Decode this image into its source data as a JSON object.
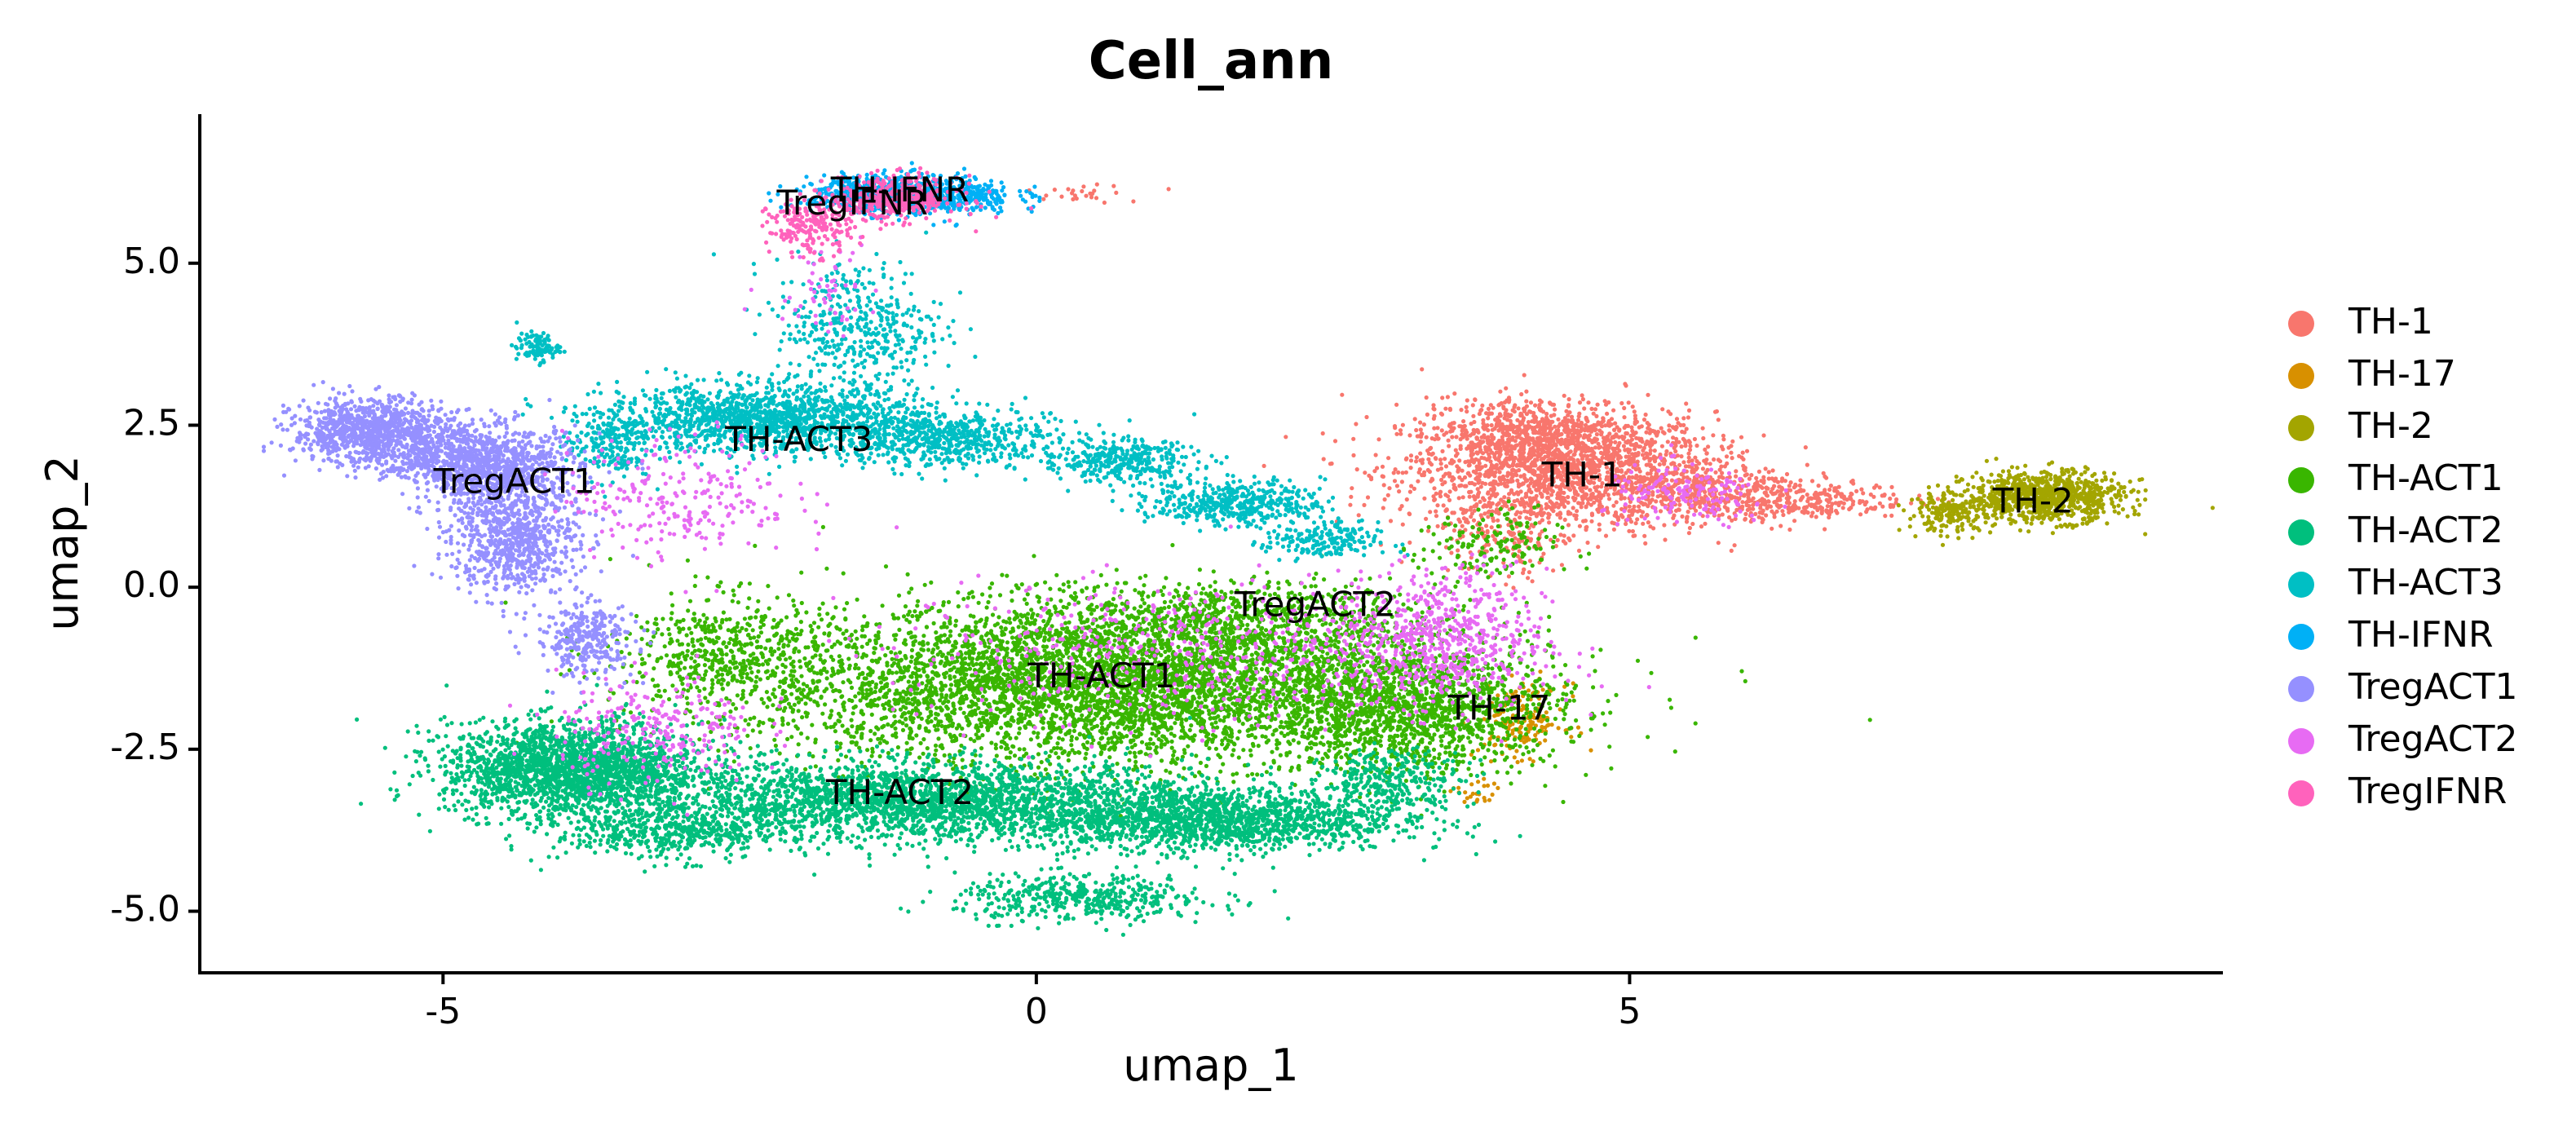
{
  "chart_data": {
    "type": "scatter",
    "title": "Cell_ann",
    "xlabel": "umap_1",
    "ylabel": "umap_2",
    "xlim": [
      -7.05,
      10.0
    ],
    "ylim": [
      -5.95,
      7.3
    ],
    "xticks": [
      -5,
      0,
      5
    ],
    "xtick_labels": [
      "-5",
      "0",
      "5"
    ],
    "yticks": [
      -5.0,
      -2.5,
      0.0,
      2.5,
      5.0
    ],
    "ytick_labels": [
      "-5.0",
      "-2.5",
      "0.0",
      "2.5",
      "5.0"
    ],
    "grid": false,
    "legend_position": "right",
    "series": [
      {
        "name": "TH-1",
        "color": "#F8766D",
        "label_pos": [
          4.6,
          1.7
        ],
        "blobs": [
          [
            4.4,
            1.8,
            1.1,
            0.75,
            1700
          ],
          [
            4.2,
            2.4,
            0.8,
            0.45,
            500
          ],
          [
            6.3,
            1.35,
            0.9,
            0.25,
            350
          ],
          [
            5.6,
            1.5,
            0.7,
            0.5,
            300
          ],
          [
            3.9,
            0.8,
            0.5,
            0.6,
            150
          ],
          [
            0.4,
            6.1,
            0.4,
            0.12,
            25
          ]
        ]
      },
      {
        "name": "TH-17",
        "color": "#D89000",
        "label_pos": [
          3.9,
          -1.9
        ],
        "blobs": [
          [
            4.1,
            -2.05,
            0.3,
            0.45,
            170
          ],
          [
            3.7,
            -3.2,
            0.15,
            0.2,
            25
          ]
        ]
      },
      {
        "name": "TH-2",
        "color": "#A3A500",
        "label_pos": [
          8.4,
          1.3
        ],
        "blobs": [
          [
            8.5,
            1.4,
            0.55,
            0.32,
            900
          ],
          [
            7.7,
            1.15,
            0.3,
            0.25,
            200
          ]
        ]
      },
      {
        "name": "TH-ACT1",
        "color": "#39B600",
        "label_pos": [
          0.55,
          -1.4
        ],
        "blobs": [
          [
            0.6,
            -1.5,
            2.5,
            1.0,
            5200
          ],
          [
            3.2,
            -1.9,
            1.0,
            0.8,
            1200
          ],
          [
            -2.6,
            -1.0,
            0.7,
            0.75,
            450
          ],
          [
            1.6,
            -0.5,
            1.5,
            0.5,
            700
          ],
          [
            3.8,
            0.6,
            0.5,
            0.5,
            150
          ]
        ]
      },
      {
        "name": "TH-ACT2",
        "color": "#00BF7D",
        "label_pos": [
          -1.15,
          -3.2
        ],
        "blobs": [
          [
            -3.9,
            -2.8,
            0.9,
            0.6,
            2200
          ],
          [
            -1.0,
            -3.3,
            2.0,
            0.5,
            2600
          ],
          [
            1.5,
            -3.6,
            1.3,
            0.4,
            1500
          ],
          [
            0.4,
            -4.8,
            0.9,
            0.3,
            450
          ],
          [
            -3.1,
            -3.8,
            0.8,
            0.35,
            450
          ],
          [
            3.0,
            -3.0,
            0.5,
            0.4,
            300
          ]
        ]
      },
      {
        "name": "TH-ACT3",
        "color": "#00BFC4",
        "label_pos": [
          -2.0,
          2.25
        ],
        "blobs": [
          [
            -2.3,
            2.6,
            1.1,
            0.42,
            1400
          ],
          [
            -0.8,
            2.3,
            0.8,
            0.38,
            600
          ],
          [
            0.7,
            1.95,
            0.55,
            0.28,
            350
          ],
          [
            1.7,
            1.3,
            0.6,
            0.28,
            450
          ],
          [
            2.4,
            0.7,
            0.4,
            0.25,
            200
          ],
          [
            -1.5,
            4.0,
            0.6,
            0.9,
            450
          ],
          [
            -4.2,
            3.7,
            0.15,
            0.18,
            100
          ],
          [
            -3.6,
            2.2,
            0.3,
            0.45,
            200
          ]
        ]
      },
      {
        "name": "TH-IFNR",
        "color": "#00B0F6",
        "label_pos": [
          -1.15,
          6.1
        ],
        "blobs": [
          [
            -0.9,
            6.05,
            0.6,
            0.25,
            600
          ],
          [
            -1.5,
            6.1,
            0.45,
            0.2,
            250
          ]
        ]
      },
      {
        "name": "TregACT1",
        "color": "#9590FF",
        "label_pos": [
          -4.4,
          1.6
        ],
        "blobs": [
          [
            -5.6,
            2.4,
            0.55,
            0.42,
            1000
          ],
          [
            -4.5,
            1.8,
            0.55,
            0.55,
            900
          ],
          [
            -4.4,
            0.7,
            0.45,
            0.65,
            700
          ],
          [
            -3.8,
            -0.8,
            0.35,
            0.5,
            300
          ],
          [
            -5.0,
            2.0,
            0.4,
            0.4,
            300
          ]
        ]
      },
      {
        "name": "TregACT2",
        "color": "#E76BF3",
        "label_pos": [
          2.35,
          -0.3
        ],
        "blobs": [
          [
            3.4,
            -0.8,
            0.75,
            0.9,
            650
          ],
          [
            1.2,
            -1.0,
            2.0,
            0.9,
            500
          ],
          [
            -3.0,
            1.4,
            0.8,
            0.8,
            250
          ],
          [
            -3.2,
            -2.2,
            0.7,
            0.7,
            250
          ],
          [
            5.5,
            1.4,
            0.6,
            0.4,
            150
          ],
          [
            -1.8,
            4.7,
            0.4,
            0.6,
            60
          ]
        ]
      },
      {
        "name": "TregIFNR",
        "color": "#FF62BC",
        "label_pos": [
          -1.55,
          5.9
        ],
        "blobs": [
          [
            -1.2,
            6.0,
            0.45,
            0.28,
            400
          ],
          [
            -1.9,
            5.55,
            0.3,
            0.35,
            200
          ]
        ]
      }
    ]
  }
}
